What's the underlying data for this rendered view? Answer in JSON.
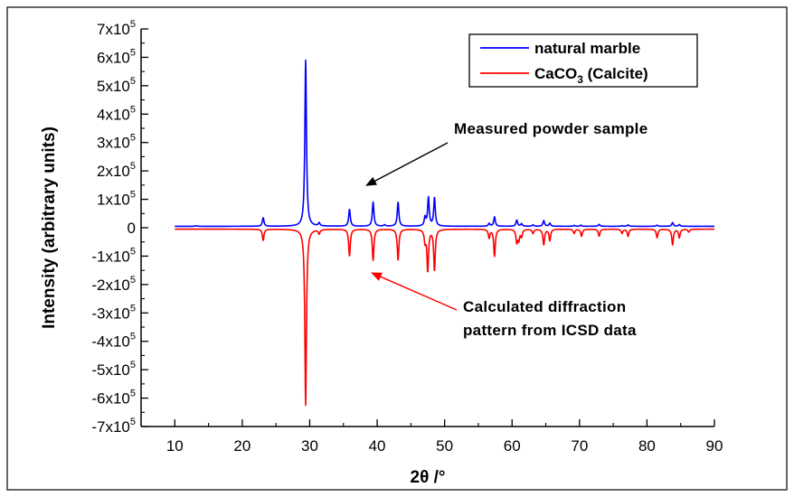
{
  "chart_data": {
    "type": "line",
    "xlabel": "2θ /°",
    "ylabel": "Intensity (arbitrary units)",
    "xlim": [
      5,
      90
    ],
    "ylim": [
      -700000,
      700000
    ],
    "x_ticks": [
      10,
      20,
      30,
      40,
      50,
      60,
      70,
      80,
      90
    ],
    "x_tick_labels": [
      "10",
      "20",
      "30",
      "40",
      "50",
      "60",
      "70",
      "80",
      "90"
    ],
    "y_ticks": [
      {
        "value": 700000,
        "mantissa": "7x10",
        "exp": "5"
      },
      {
        "value": 600000,
        "mantissa": "6x10",
        "exp": "5"
      },
      {
        "value": 500000,
        "mantissa": "5x10",
        "exp": "5"
      },
      {
        "value": 400000,
        "mantissa": "4x10",
        "exp": "5"
      },
      {
        "value": 300000,
        "mantissa": "3x10",
        "exp": "5"
      },
      {
        "value": 200000,
        "mantissa": "2x10",
        "exp": "5"
      },
      {
        "value": 100000,
        "mantissa": "1x10",
        "exp": "5"
      },
      {
        "value": 0,
        "mantissa": "0",
        "exp": ""
      },
      {
        "value": -100000,
        "mantissa": "-1x10",
        "exp": "5"
      },
      {
        "value": -200000,
        "mantissa": "-2x10",
        "exp": "5"
      },
      {
        "value": -300000,
        "mantissa": "-3x10",
        "exp": "5"
      },
      {
        "value": -400000,
        "mantissa": "-4x10",
        "exp": "5"
      },
      {
        "value": -500000,
        "mantissa": "-5x10",
        "exp": "5"
      },
      {
        "value": -600000,
        "mantissa": "-6x10",
        "exp": "5"
      },
      {
        "value": -700000,
        "mantissa": "-7x10",
        "exp": "5"
      }
    ],
    "legend": {
      "position": "top-right",
      "entries": [
        {
          "name": "natural marble",
          "color": "#0000ff"
        },
        {
          "name": "CaCO",
          "sub": "3",
          "suffix": " (Calcite)",
          "color": "#ff0000"
        }
      ]
    },
    "grid": false,
    "series": [
      {
        "name": "natural marble",
        "color": "#0000ff",
        "baseline": 5000,
        "peaks": [
          {
            "x": 13.2,
            "y": 7000
          },
          {
            "x": 23.1,
            "y": 35000
          },
          {
            "x": 29.4,
            "y": 590000
          },
          {
            "x": 31.4,
            "y": 16000
          },
          {
            "x": 35.9,
            "y": 65000
          },
          {
            "x": 39.4,
            "y": 90000
          },
          {
            "x": 41.1,
            "y": 10000
          },
          {
            "x": 43.1,
            "y": 90000
          },
          {
            "x": 47.1,
            "y": 35000
          },
          {
            "x": 47.6,
            "y": 105000
          },
          {
            "x": 48.5,
            "y": 105000
          },
          {
            "x": 56.6,
            "y": 15000
          },
          {
            "x": 57.4,
            "y": 38000
          },
          {
            "x": 60.7,
            "y": 27000
          },
          {
            "x": 61.4,
            "y": 14000
          },
          {
            "x": 63.1,
            "y": 10000
          },
          {
            "x": 64.7,
            "y": 25000
          },
          {
            "x": 65.6,
            "y": 16000
          },
          {
            "x": 69.2,
            "y": 8000
          },
          {
            "x": 70.2,
            "y": 9000
          },
          {
            "x": 72.9,
            "y": 12000
          },
          {
            "x": 76.3,
            "y": 7000
          },
          {
            "x": 77.2,
            "y": 10000
          },
          {
            "x": 81.5,
            "y": 9000
          },
          {
            "x": 83.8,
            "y": 18000
          },
          {
            "x": 84.8,
            "y": 11000
          },
          {
            "x": 86.2,
            "y": 5000
          }
        ]
      },
      {
        "name": "CaCO3 (Calcite)",
        "color": "#ff0000",
        "baseline": -5000,
        "peaks": [
          {
            "x": 23.1,
            "y": -45000
          },
          {
            "x": 29.4,
            "y": -625000
          },
          {
            "x": 31.4,
            "y": -20000
          },
          {
            "x": 35.9,
            "y": -100000
          },
          {
            "x": 39.4,
            "y": -115000
          },
          {
            "x": 43.1,
            "y": -115000
          },
          {
            "x": 47.1,
            "y": -45000
          },
          {
            "x": 47.5,
            "y": -150000
          },
          {
            "x": 48.5,
            "y": -150000
          },
          {
            "x": 56.6,
            "y": -35000
          },
          {
            "x": 57.4,
            "y": -100000
          },
          {
            "x": 60.7,
            "y": -50000
          },
          {
            "x": 61.0,
            "y": -40000
          },
          {
            "x": 61.4,
            "y": -30000
          },
          {
            "x": 63.1,
            "y": -20000
          },
          {
            "x": 64.7,
            "y": -60000
          },
          {
            "x": 65.6,
            "y": -45000
          },
          {
            "x": 69.2,
            "y": -20000
          },
          {
            "x": 70.3,
            "y": -30000
          },
          {
            "x": 72.9,
            "y": -30000
          },
          {
            "x": 76.3,
            "y": -20000
          },
          {
            "x": 77.2,
            "y": -30000
          },
          {
            "x": 81.5,
            "y": -35000
          },
          {
            "x": 83.8,
            "y": -60000
          },
          {
            "x": 84.8,
            "y": -35000
          },
          {
            "x": 86.2,
            "y": -15000
          }
        ]
      }
    ],
    "annotations": [
      {
        "text_lines": [
          "Measured powder sample"
        ],
        "arrow_to": {
          "x": 38.5,
          "y": 150000
        },
        "color": "#000000"
      },
      {
        "text_lines": [
          "Calculated diffraction",
          "pattern from ICSD data"
        ],
        "arrow_to": {
          "x": 39.3,
          "y": -160000
        },
        "color": "#ff0000"
      }
    ]
  }
}
